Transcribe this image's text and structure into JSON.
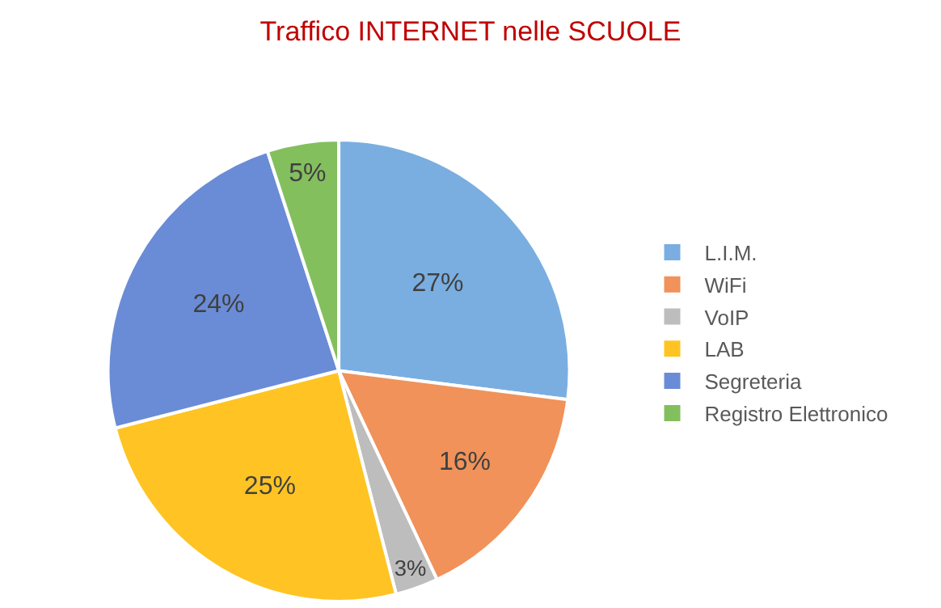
{
  "chart_data": {
    "type": "pie",
    "title": "Traffico INTERNET nelle SCUOLE",
    "categories": [
      "L.I.M.",
      "WiFi",
      "VoIP",
      "LAB",
      "Segreteria",
      "Registro Elettronico"
    ],
    "values": [
      27,
      16,
      3,
      25,
      24,
      5
    ],
    "value_labels": [
      "27%",
      "16%",
      "3%",
      "25%",
      "24%",
      "5%"
    ],
    "colors": [
      "#7aaee0",
      "#f0925a",
      "#bdbdbd",
      "#ffc423",
      "#6a8cd6",
      "#84bf5e"
    ],
    "legend": "right"
  }
}
